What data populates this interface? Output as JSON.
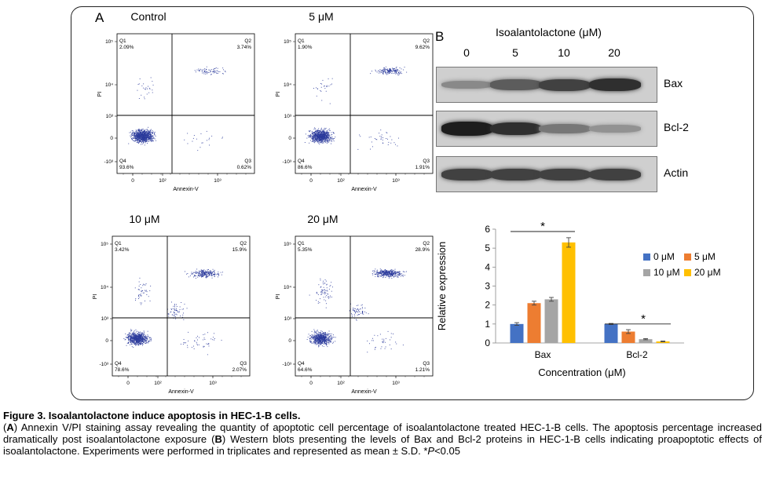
{
  "panel_a": {
    "letter": "A",
    "y_axis_label": "PI",
    "x_axis_label": "Annexin-V",
    "y_ticks": [
      "10⁵",
      "10⁴",
      "10³",
      "0",
      "-10³"
    ],
    "x_ticks": [
      "0",
      "10²",
      "10³"
    ],
    "plots": [
      {
        "title": "Control",
        "q1": "Q1",
        "q1_value": "2.09%",
        "q2": "Q2",
        "q2_value": "3.74%",
        "q3": "Q3",
        "q3_value": "0.62%",
        "q4": "Q4",
        "q4_value": "93.6%"
      },
      {
        "title": "5 μM",
        "q1": "Q1",
        "q1_value": "1.90%",
        "q2": "Q2",
        "q2_value": "9.62%",
        "q3": "Q3",
        "q3_value": "1.91%",
        "q4": "Q4",
        "q4_value": "86.6%"
      },
      {
        "title": "10 μM",
        "q1": "Q1",
        "q1_value": "3.42%",
        "q2": "Q2",
        "q2_value": "15.9%",
        "q3": "Q3",
        "q3_value": "2.07%",
        "q4": "Q4",
        "q4_value": "78.6%"
      },
      {
        "title": "20 μM",
        "q1": "Q1",
        "q1_value": "5.35%",
        "q2": "Q2",
        "q2_value": "28.9%",
        "q3": "Q3",
        "q3_value": "1.21%",
        "q4": "Q4",
        "q4_value": "64.6%"
      }
    ]
  },
  "panel_b": {
    "letter": "B",
    "header": "Isoalantolactone (μM)",
    "lanes": [
      "0",
      "5",
      "10",
      "20"
    ],
    "blots": [
      {
        "label": "Bax",
        "intensity": [
          0.35,
          0.6,
          0.75,
          0.85
        ]
      },
      {
        "label": "Bcl-2",
        "intensity": [
          0.95,
          0.85,
          0.45,
          0.3
        ]
      },
      {
        "label": "Actin",
        "intensity": [
          0.75,
          0.75,
          0.75,
          0.75
        ]
      }
    ]
  },
  "chart_data": {
    "type": "bar",
    "categories": [
      "Bax",
      "Bcl-2"
    ],
    "series": [
      {
        "name": "0 μM",
        "values": [
          1.0,
          1.0
        ],
        "errors": [
          0.07,
          0.03
        ],
        "color": "#4472C4"
      },
      {
        "name": "5 μM",
        "values": [
          2.1,
          0.6
        ],
        "errors": [
          0.1,
          0.1
        ],
        "color": "#ED7D31"
      },
      {
        "name": "10 μM",
        "values": [
          2.3,
          0.2
        ],
        "errors": [
          0.1,
          0.03
        ],
        "color": "#A5A5A5"
      },
      {
        "name": "20 μM",
        "values": [
          5.3,
          0.08
        ],
        "errors": [
          0.25,
          0.02
        ],
        "color": "#FFC000"
      }
    ],
    "xlabel": "Concentration (μM)",
    "ylabel": "Relative expression",
    "ylim": [
      0,
      6
    ],
    "yticks": [
      "0",
      "1",
      "2",
      "3",
      "4",
      "5",
      "6"
    ],
    "significance": "*",
    "legend_position": "top-right",
    "grid": false
  },
  "caption": {
    "title": "Figure 3. Isoalantolactone induce apoptosis in HEC-1-B cells.",
    "a_letter": "A",
    "a_text": ") Annexin V/PI staining assay revealing the quantity of apoptotic cell percentage of isoalantolactone treated HEC-1-B cells. The apoptosis percentage increased dramatically post isoalantolactone exposure (",
    "b_letter": "B",
    "b_text": ") Western blots presenting the levels of Bax and Bcl-2 proteins in HEC-1-B cells indicating proapoptotic effects of isoalantolactone. Experiments were performed in triplicates and represented as mean ± S.D. *",
    "p_italic": "P",
    "p_rest": "<0.05"
  }
}
